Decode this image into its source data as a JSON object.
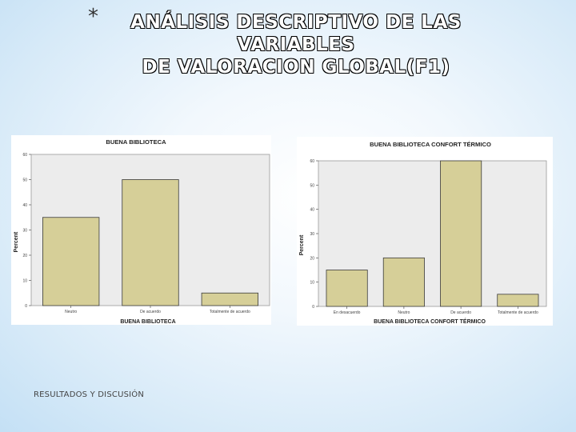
{
  "slide": {
    "bullet": "*",
    "title_line1": "ANÁLISIS DESCRIPTIVO DE LAS VARIABLES",
    "title_line2": "DE VALORACION GLOBAL(F1)",
    "footer": "RESULTADOS Y DISCUSIÓN"
  },
  "colors": {
    "bar_fill": "#d6cf98",
    "bar_stroke": "#3a3a3a",
    "plot_bg": "#ececec",
    "chart_bg": "#ffffff"
  },
  "chart_data": [
    {
      "type": "bar",
      "title": "BUENA BIBLIOTECA",
      "xlabel": "BUENA BIBLIOTECA",
      "ylabel": "Percent",
      "categories": [
        "Neutro",
        "De acuerdo",
        "Totalmente de acuerdo"
      ],
      "values": [
        35,
        50,
        5
      ],
      "yticks": [
        0,
        10,
        20,
        30,
        40,
        50,
        60
      ],
      "ylim": [
        0,
        60
      ],
      "grid": false,
      "legend": "none"
    },
    {
      "type": "bar",
      "title": "BUENA BIBLIOTECA CONFORT TÉRMICO",
      "xlabel": "BUENA BIBLIOTECA CONFORT TÉRMICO",
      "ylabel": "Percent",
      "categories": [
        "En desacuerdo",
        "Neutro",
        "De acuerdo",
        "Totalmente de acuerdo"
      ],
      "values": [
        15,
        20,
        60,
        5
      ],
      "yticks": [
        0,
        10,
        20,
        30,
        40,
        50,
        60
      ],
      "ylim": [
        0,
        60
      ],
      "grid": false,
      "legend": "none"
    }
  ]
}
